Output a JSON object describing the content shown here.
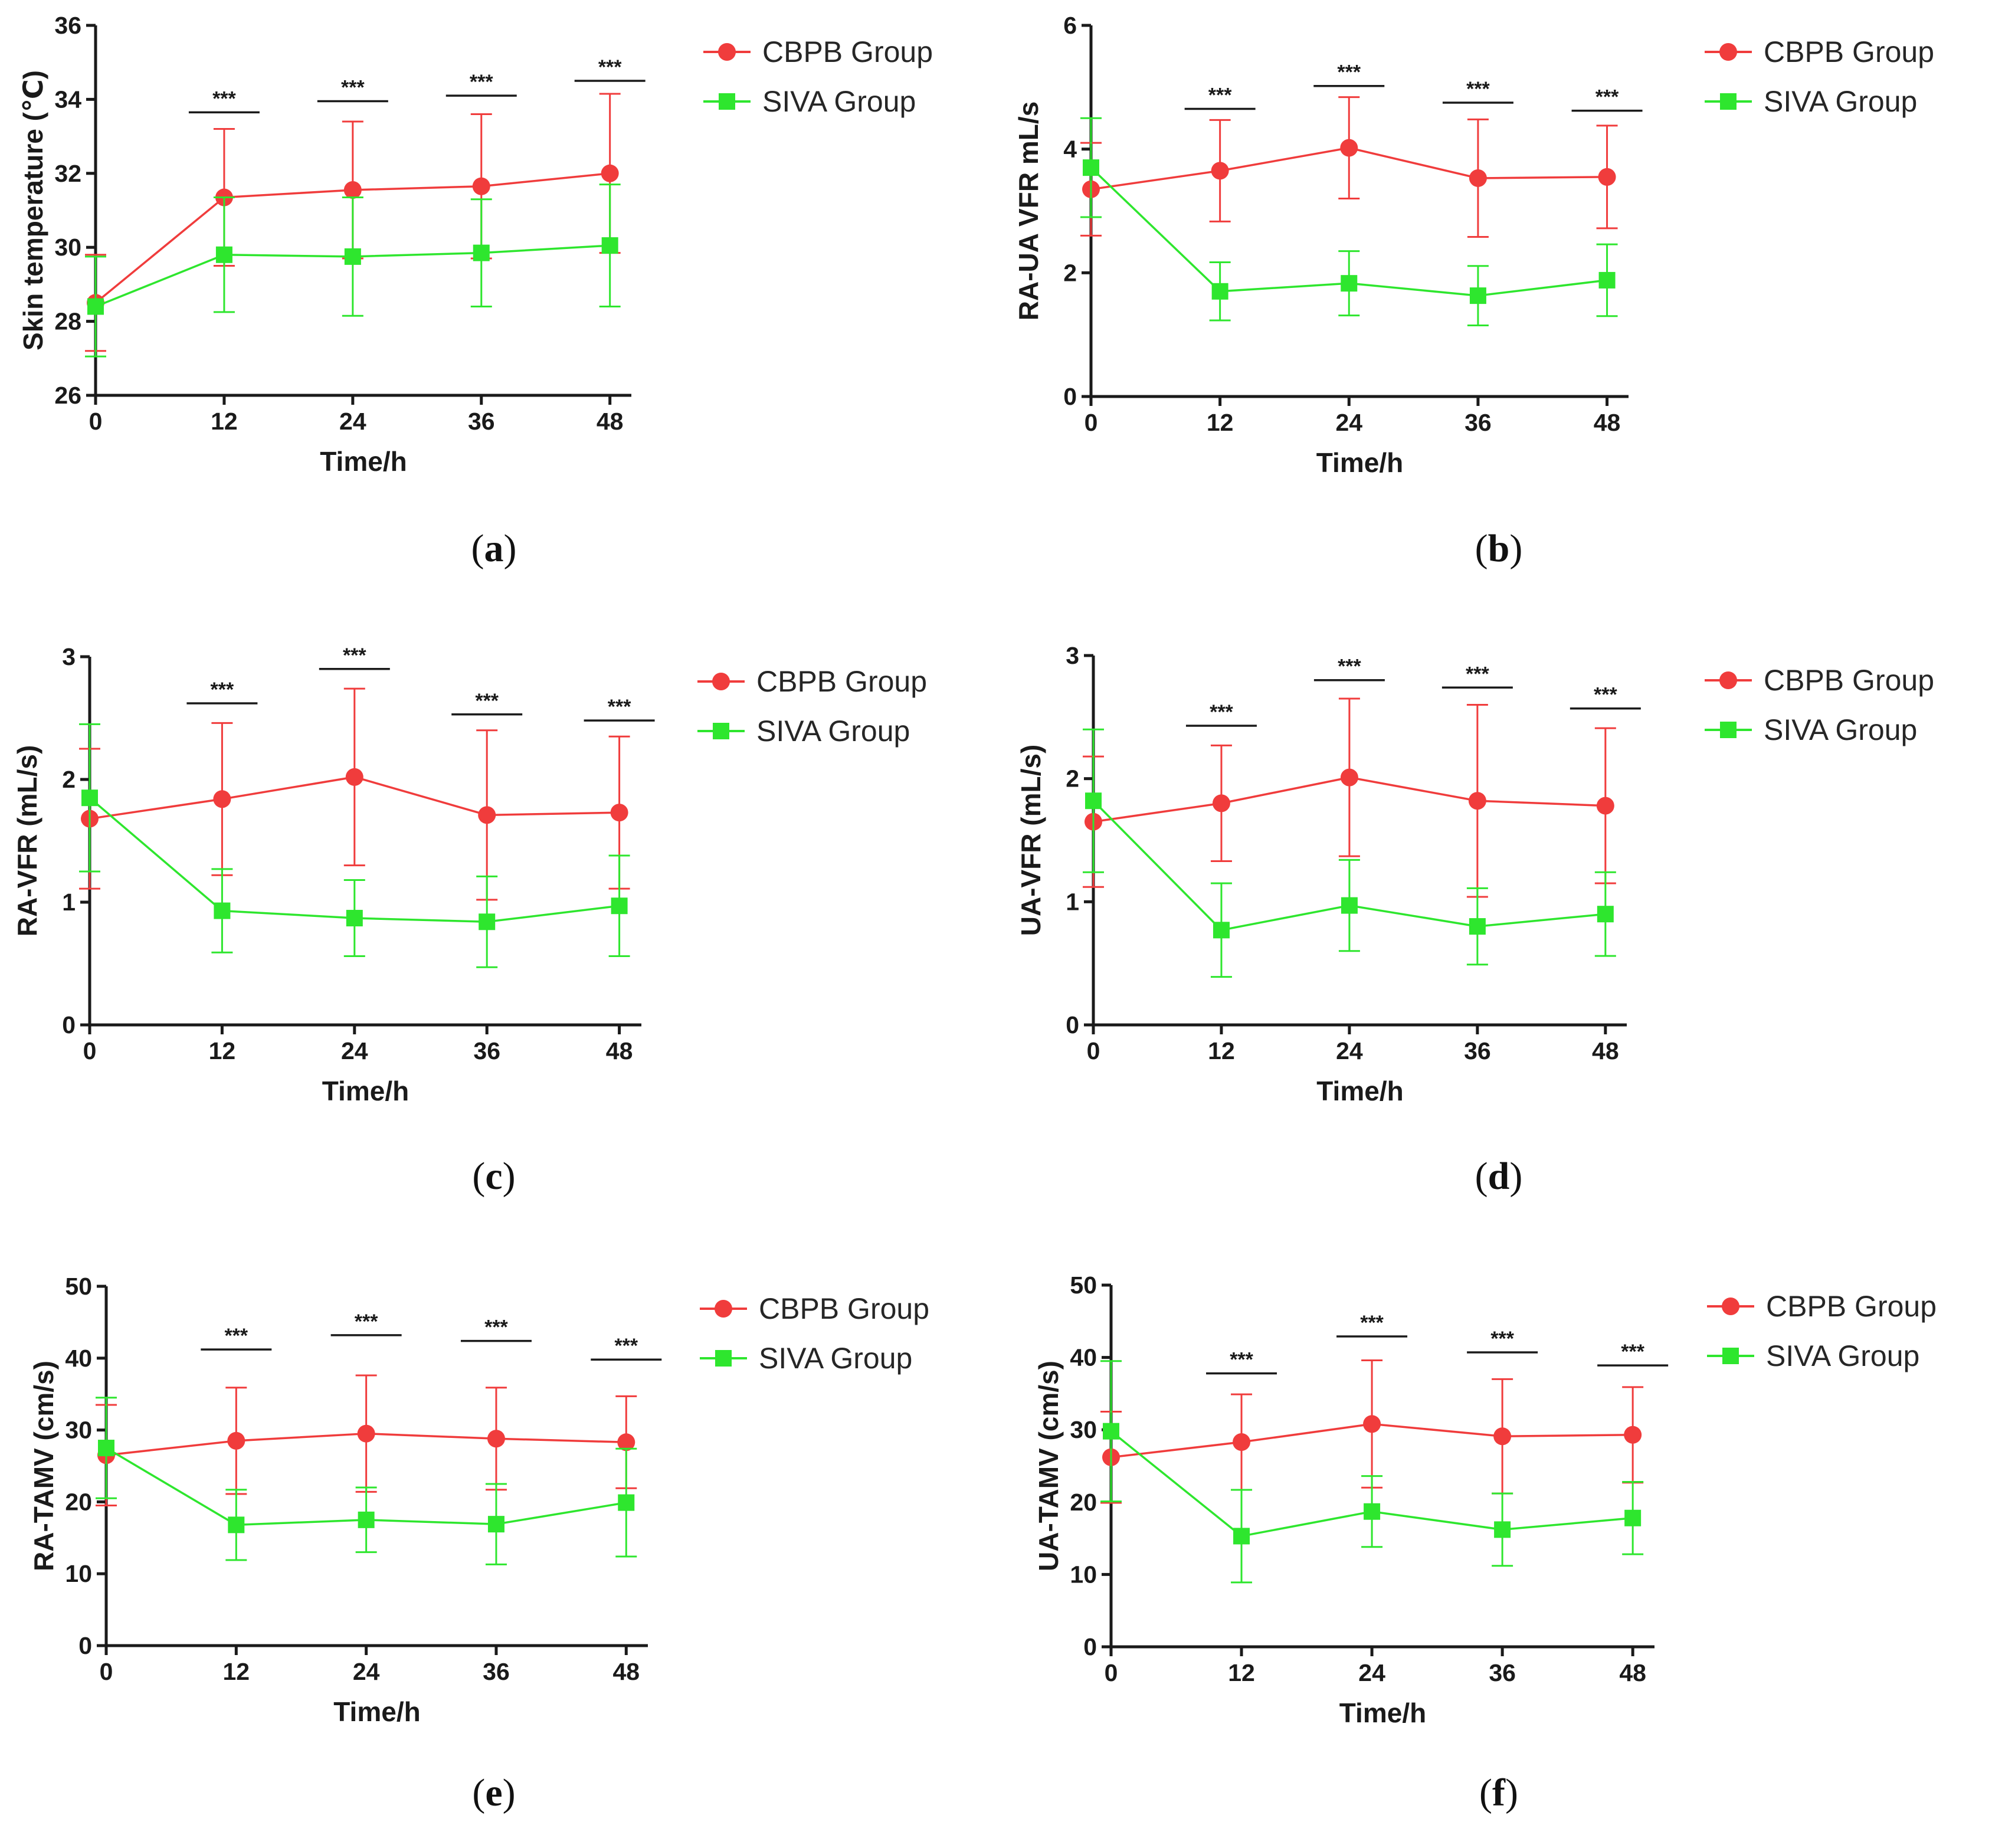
{
  "figure": {
    "colors": {
      "cbpb": "#f03c3c",
      "siva": "#2ee62e",
      "axis": "#1a1a1a"
    }
  },
  "chart_data": [
    {
      "id": "a",
      "type": "line",
      "panel_label": {
        "open": "(",
        "letter": "a",
        "close": ")"
      },
      "xlabel": "Time/h",
      "ylabel": "Skin temperature (℃)",
      "x": [
        0,
        12,
        24,
        36,
        48
      ],
      "xticks": [
        "0",
        "12",
        "24",
        "36",
        "48"
      ],
      "xlim": [
        0,
        50
      ],
      "ylim": [
        26,
        36
      ],
      "yticks": [
        26,
        28,
        30,
        32,
        34,
        36
      ],
      "ytick_labels": [
        "26",
        "28",
        "30",
        "32",
        "34",
        "36"
      ],
      "series": [
        {
          "name": "CBPB Group",
          "marker": "circle",
          "color": "#f03c3c",
          "values": [
            28.5,
            31.35,
            31.55,
            31.65,
            32.0
          ],
          "errors": [
            1.3,
            1.85,
            1.85,
            1.95,
            2.15
          ]
        },
        {
          "name": "SIVA Group",
          "marker": "square",
          "color": "#2ee62e",
          "values": [
            28.4,
            29.8,
            29.75,
            29.85,
            30.05
          ],
          "errors": [
            1.35,
            1.55,
            1.6,
            1.45,
            1.65
          ]
        }
      ],
      "significance": [
        {
          "x": 12,
          "y": 33.65,
          "label": "***"
        },
        {
          "x": 24,
          "y": 33.95,
          "label": "***"
        },
        {
          "x": 36,
          "y": 34.1,
          "label": "***"
        },
        {
          "x": 48,
          "y": 34.5,
          "label": "***"
        }
      ],
      "legend": {
        "position": "top-right-outside",
        "entries": [
          "CBPB Group",
          "SIVA Group"
        ]
      }
    },
    {
      "id": "b",
      "type": "line",
      "panel_label": {
        "open": "(",
        "letter": "b",
        "close": ")"
      },
      "xlabel": "Time/h",
      "ylabel": "RA-UA VFR mL/s",
      "x": [
        0,
        12,
        24,
        36,
        48
      ],
      "xticks": [
        "0",
        "12",
        "24",
        "36",
        "48"
      ],
      "xlim": [
        0,
        50
      ],
      "ylim": [
        0,
        6
      ],
      "yticks": [
        0,
        2,
        4,
        6
      ],
      "ytick_labels": [
        "0",
        "2",
        "4",
        "6"
      ],
      "series": [
        {
          "name": "CBPB Group",
          "marker": "circle",
          "color": "#f03c3c",
          "values": [
            3.35,
            3.65,
            4.02,
            3.53,
            3.55
          ],
          "errors": [
            0.75,
            0.82,
            0.82,
            0.95,
            0.83
          ]
        },
        {
          "name": "SIVA Group",
          "marker": "square",
          "color": "#2ee62e",
          "values": [
            3.7,
            1.7,
            1.83,
            1.63,
            1.88
          ],
          "errors": [
            0.8,
            0.47,
            0.52,
            0.48,
            0.58
          ]
        }
      ],
      "significance": [
        {
          "x": 12,
          "y": 4.65,
          "label": "***"
        },
        {
          "x": 24,
          "y": 5.02,
          "label": "***"
        },
        {
          "x": 36,
          "y": 4.75,
          "label": "***"
        },
        {
          "x": 48,
          "y": 4.62,
          "label": "***"
        }
      ],
      "legend": {
        "position": "top-right-outside",
        "entries": [
          "CBPB Group",
          "SIVA Group"
        ]
      }
    },
    {
      "id": "c",
      "type": "line",
      "panel_label": {
        "open": "(",
        "letter": "c",
        "close": ")"
      },
      "xlabel": "Time/h",
      "ylabel": "RA-VFR (mL/s)",
      "x": [
        0,
        12,
        24,
        36,
        48
      ],
      "xticks": [
        "0",
        "12",
        "24",
        "36",
        "48"
      ],
      "xlim": [
        0,
        50
      ],
      "ylim": [
        0,
        3
      ],
      "yticks": [
        0,
        1,
        2,
        3
      ],
      "ytick_labels": [
        "0",
        "1",
        "2",
        "3"
      ],
      "series": [
        {
          "name": "CBPB Group",
          "marker": "circle",
          "color": "#f03c3c",
          "values": [
            1.68,
            1.84,
            2.02,
            1.71,
            1.73
          ],
          "errors": [
            0.57,
            0.62,
            0.72,
            0.69,
            0.62
          ]
        },
        {
          "name": "SIVA Group",
          "marker": "square",
          "color": "#2ee62e",
          "values": [
            1.85,
            0.93,
            0.87,
            0.84,
            0.97
          ],
          "errors": [
            0.6,
            0.34,
            0.31,
            0.37,
            0.41
          ]
        }
      ],
      "significance": [
        {
          "x": 12,
          "y": 2.62,
          "label": "***"
        },
        {
          "x": 24,
          "y": 2.9,
          "label": "***"
        },
        {
          "x": 36,
          "y": 2.53,
          "label": "***"
        },
        {
          "x": 48,
          "y": 2.48,
          "label": "***"
        }
      ],
      "legend": {
        "position": "top-right-outside",
        "entries": [
          "CBPB Group",
          "SIVA Group"
        ]
      }
    },
    {
      "id": "d",
      "type": "line",
      "panel_label": {
        "open": "(",
        "letter": "d",
        "close": ")"
      },
      "xlabel": "Time/h",
      "ylabel": "UA-VFR (mL/s)",
      "x": [
        0,
        12,
        24,
        36,
        48
      ],
      "xticks": [
        "0",
        "12",
        "24",
        "36",
        "48"
      ],
      "xlim": [
        0,
        50
      ],
      "ylim": [
        0,
        3
      ],
      "yticks": [
        0,
        1,
        2,
        3
      ],
      "ytick_labels": [
        "0",
        "1",
        "2",
        "3"
      ],
      "series": [
        {
          "name": "CBPB Group",
          "marker": "circle",
          "color": "#f03c3c",
          "values": [
            1.65,
            1.8,
            2.01,
            1.82,
            1.78
          ],
          "errors": [
            0.53,
            0.47,
            0.64,
            0.78,
            0.63
          ]
        },
        {
          "name": "SIVA Group",
          "marker": "square",
          "color": "#2ee62e",
          "values": [
            1.82,
            0.77,
            0.97,
            0.8,
            0.9
          ],
          "errors": [
            0.58,
            0.38,
            0.37,
            0.31,
            0.34
          ]
        }
      ],
      "significance": [
        {
          "x": 12,
          "y": 2.43,
          "label": "***"
        },
        {
          "x": 24,
          "y": 2.8,
          "label": "***"
        },
        {
          "x": 36,
          "y": 2.74,
          "label": "***"
        },
        {
          "x": 48,
          "y": 2.57,
          "label": "***"
        }
      ],
      "legend": {
        "position": "top-right-outside",
        "entries": [
          "CBPB Group",
          "SIVA Group"
        ]
      }
    },
    {
      "id": "e",
      "type": "line",
      "panel_label": {
        "open": "(",
        "letter": "e",
        "close": ")"
      },
      "xlabel": "Time/h",
      "ylabel": "RA-TAMV (cm/s)",
      "x": [
        0,
        12,
        24,
        36,
        48
      ],
      "xticks": [
        "0",
        "12",
        "24",
        "36",
        "48"
      ],
      "xlim": [
        0,
        50
      ],
      "ylim": [
        0,
        50
      ],
      "yticks": [
        0,
        10,
        20,
        30,
        40,
        50
      ],
      "ytick_labels": [
        "0",
        "10",
        "20",
        "30",
        "40",
        "50"
      ],
      "series": [
        {
          "name": "CBPB Group",
          "marker": "circle",
          "color": "#f03c3c",
          "values": [
            26.5,
            28.5,
            29.5,
            28.8,
            28.3
          ],
          "errors": [
            7.0,
            7.4,
            8.1,
            7.1,
            6.4
          ]
        },
        {
          "name": "SIVA Group",
          "marker": "square",
          "color": "#2ee62e",
          "values": [
            27.5,
            16.8,
            17.5,
            16.9,
            19.9
          ],
          "errors": [
            7.0,
            4.9,
            4.5,
            5.6,
            7.5
          ]
        }
      ],
      "significance": [
        {
          "x": 12,
          "y": 41.2,
          "label": "***"
        },
        {
          "x": 24,
          "y": 43.2,
          "label": "***"
        },
        {
          "x": 36,
          "y": 42.4,
          "label": "***"
        },
        {
          "x": 48,
          "y": 39.8,
          "label": "***"
        }
      ],
      "legend": {
        "position": "top-right-outside",
        "entries": [
          "CBPB Group",
          "SIVA Group"
        ]
      }
    },
    {
      "id": "f",
      "type": "line",
      "panel_label": {
        "open": "(",
        "letter": "f",
        "close": ")"
      },
      "xlabel": "Time/h",
      "ylabel": "UA-TAMV (cm/s)",
      "x": [
        0,
        12,
        24,
        36,
        48
      ],
      "xticks": [
        "0",
        "12",
        "24",
        "36",
        "48"
      ],
      "xlim": [
        0,
        50
      ],
      "ylim": [
        0,
        50
      ],
      "yticks": [
        0,
        10,
        20,
        30,
        40,
        50
      ],
      "ytick_labels": [
        "0",
        "10",
        "20",
        "30",
        "40",
        "50"
      ],
      "series": [
        {
          "name": "CBPB Group",
          "marker": "circle",
          "color": "#f03c3c",
          "values": [
            26.2,
            28.3,
            30.8,
            29.1,
            29.3
          ],
          "errors": [
            6.3,
            6.6,
            8.8,
            7.9,
            6.6
          ]
        },
        {
          "name": "SIVA Group",
          "marker": "square",
          "color": "#2ee62e",
          "values": [
            29.8,
            15.3,
            18.7,
            16.2,
            17.8
          ],
          "errors": [
            9.7,
            6.4,
            4.9,
            5.0,
            5.0
          ]
        }
      ],
      "significance": [
        {
          "x": 12,
          "y": 37.8,
          "label": "***"
        },
        {
          "x": 24,
          "y": 42.9,
          "label": "***"
        },
        {
          "x": 36,
          "y": 40.7,
          "label": "***"
        },
        {
          "x": 48,
          "y": 38.9,
          "label": "***"
        }
      ],
      "legend": {
        "position": "top-right-outside",
        "entries": [
          "CBPB Group",
          "SIVA Group"
        ]
      }
    }
  ]
}
